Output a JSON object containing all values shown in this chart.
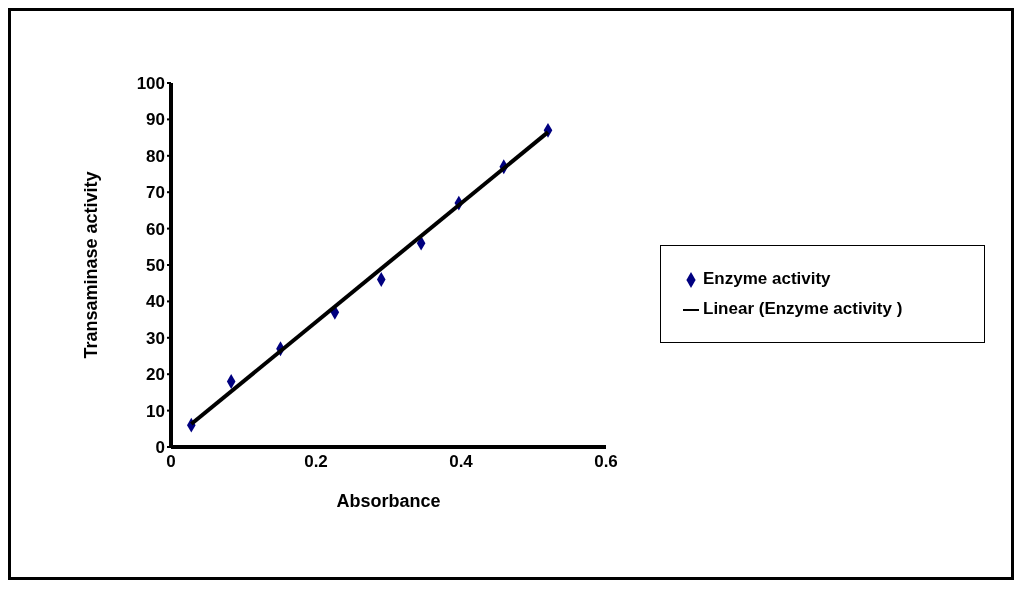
{
  "chart_data": {
    "type": "scatter",
    "xlabel": "Absorbance",
    "ylabel": "Transaminase activity",
    "xlim": [
      0,
      0.6
    ],
    "ylim": [
      0,
      100
    ],
    "xticks": [
      0,
      0.2,
      0.4,
      0.6
    ],
    "yticks": [
      0,
      10,
      20,
      30,
      40,
      50,
      60,
      70,
      80,
      90,
      100
    ],
    "legend": "right",
    "series": [
      {
        "name": "Enzyme activity",
        "color": "#000080",
        "marker": "diamond",
        "x": [
          0.028,
          0.083,
          0.151,
          0.226,
          0.29,
          0.345,
          0.397,
          0.459,
          0.52
        ],
        "values": [
          6,
          18,
          27,
          37,
          46,
          56,
          67,
          77,
          87
        ]
      },
      {
        "type": "line",
        "name": "Linear  (Enzyme activity )",
        "color": "#000000",
        "marker": "none",
        "line_style": "solid",
        "x": [
          0.028,
          0.52
        ],
        "values": [
          6.3,
          86.5
        ]
      }
    ]
  }
}
